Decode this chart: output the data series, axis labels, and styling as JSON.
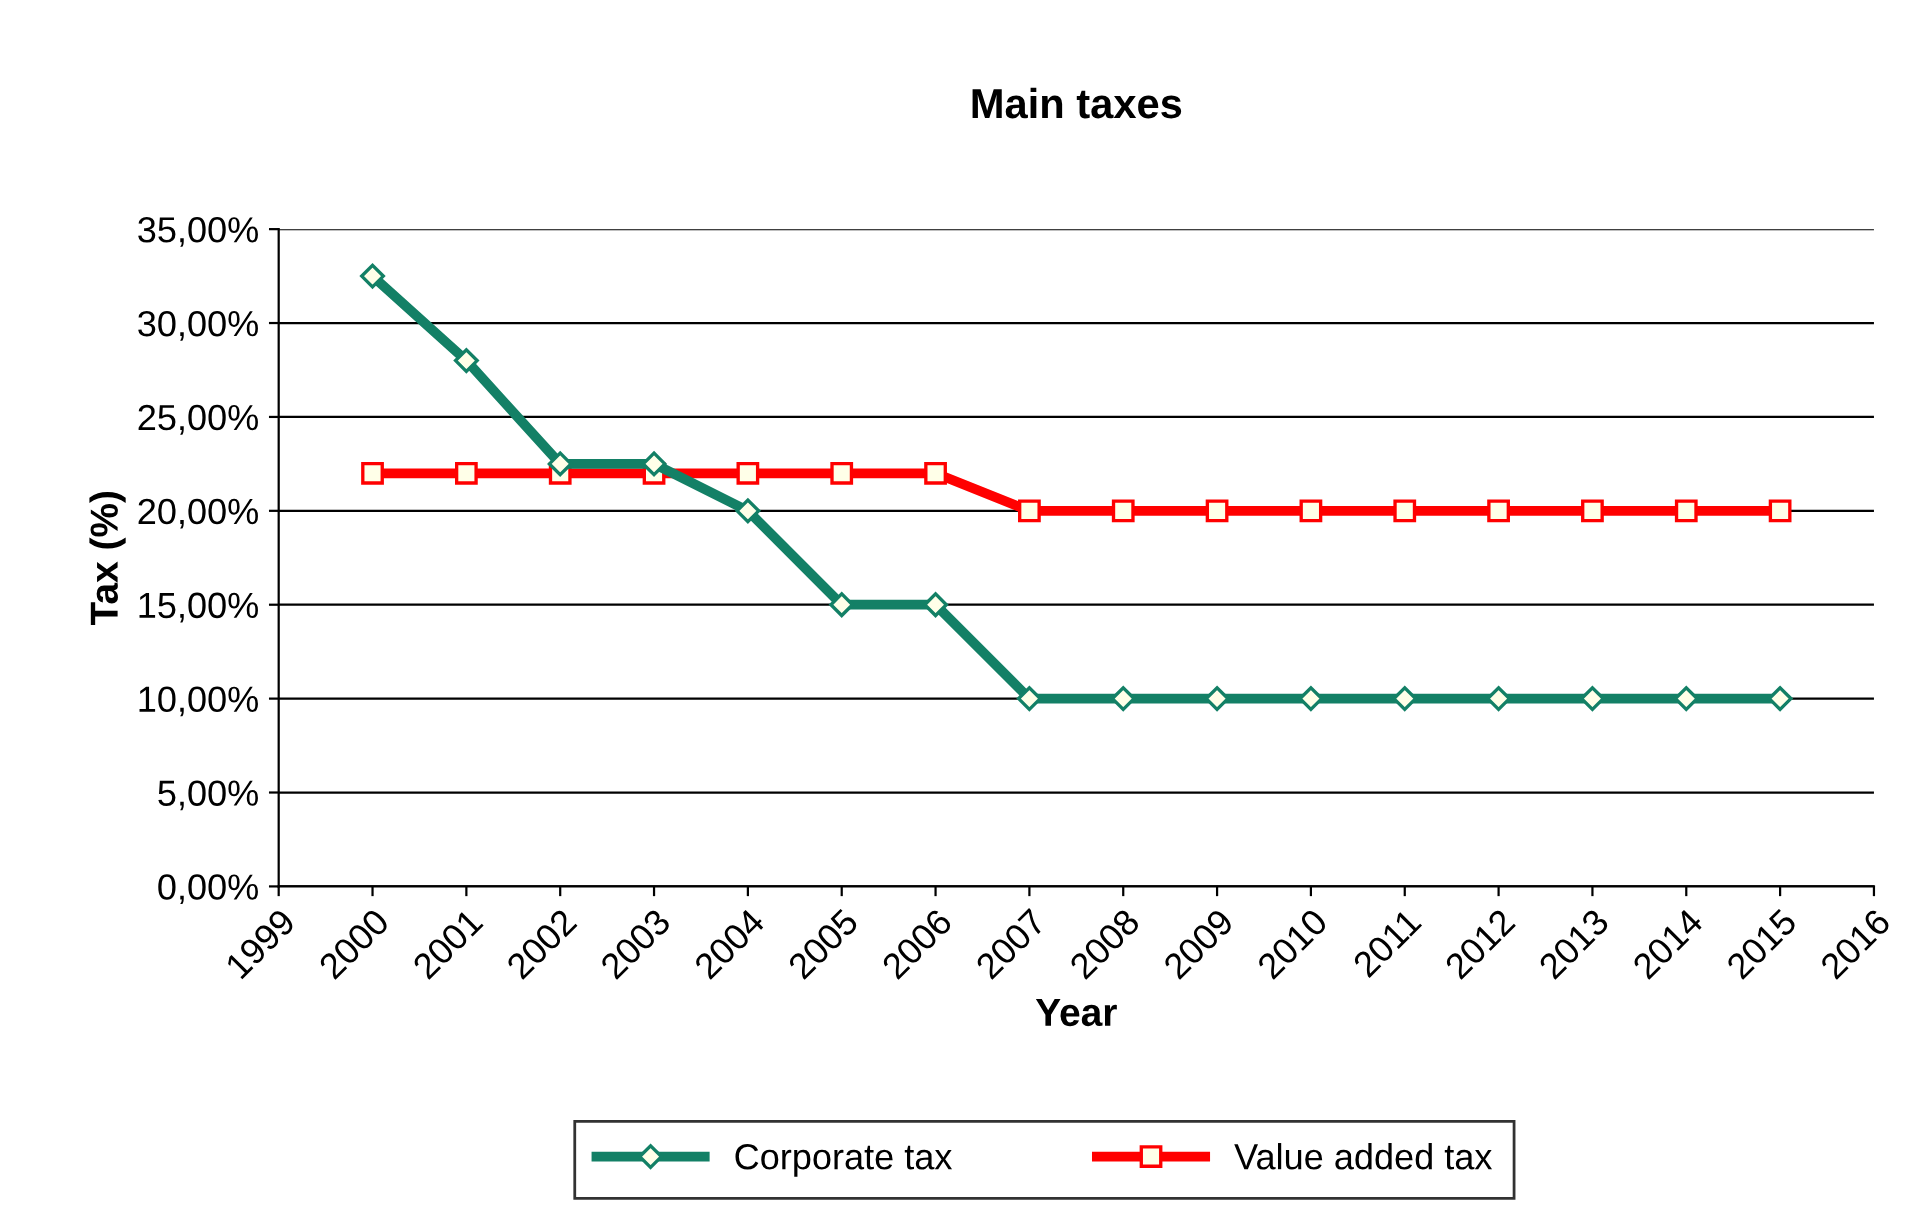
{
  "chart_data": {
    "type": "line",
    "title": "Main taxes",
    "xlabel": "Year",
    "ylabel": "Tax (%)",
    "x": [
      2000,
      2001,
      2002,
      2003,
      2004,
      2005,
      2006,
      2007,
      2008,
      2009,
      2010,
      2011,
      2012,
      2013,
      2014,
      2015
    ],
    "series": [
      {
        "name": "Corporate tax",
        "color": "#138066",
        "marker": "diamond",
        "values": [
          32.5,
          28,
          22.5,
          22.5,
          20,
          15,
          15,
          10,
          10,
          10,
          10,
          10,
          10,
          10,
          10,
          10
        ]
      },
      {
        "name": "Value added tax",
        "color": "#ff0000",
        "marker": "square",
        "values": [
          22,
          22,
          22,
          22,
          22,
          22,
          22,
          20,
          20,
          20,
          20,
          20,
          20,
          20,
          20,
          20
        ]
      }
    ],
    "xlim": [
      1999,
      2016
    ],
    "xticks": [
      1999,
      2000,
      2001,
      2002,
      2003,
      2004,
      2005,
      2006,
      2007,
      2008,
      2009,
      2010,
      2011,
      2012,
      2013,
      2014,
      2015,
      2016
    ],
    "ylim": [
      0,
      35
    ],
    "yticks": [
      {
        "value": 0,
        "label": "0,00%"
      },
      {
        "value": 5,
        "label": "5,00%"
      },
      {
        "value": 10,
        "label": "10,00%"
      },
      {
        "value": 15,
        "label": "15,00%"
      },
      {
        "value": 20,
        "label": "20,00%"
      },
      {
        "value": 25,
        "label": "25,00%"
      },
      {
        "value": 30,
        "label": "30,00%"
      },
      {
        "value": 35,
        "label": "35,00%"
      }
    ],
    "grid": "y",
    "legend": "bottom",
    "line_style": "solid"
  }
}
